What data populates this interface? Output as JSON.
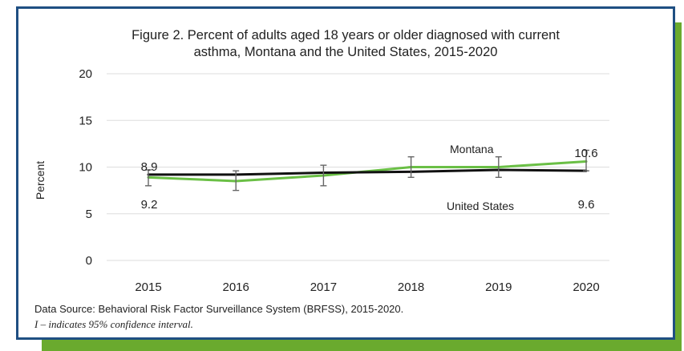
{
  "chart_data": {
    "type": "line",
    "title_line1": "Figure 2. Percent of adults aged 18 years or older diagnosed with current",
    "title_line2": "asthma, Montana and the United States, 2015-2020",
    "xlabel": "",
    "ylabel": "Percent",
    "ylim": [
      0,
      20
    ],
    "yticks": [
      "0",
      "5",
      "10",
      "15",
      "20"
    ],
    "categories": [
      "2015",
      "2016",
      "2017",
      "2018",
      "2019",
      "2020"
    ],
    "grid": "horizontal",
    "series": [
      {
        "name": "Montana",
        "color": "#6abf45",
        "values": [
          8.9,
          8.5,
          9.1,
          10.0,
          10.0,
          10.6
        ],
        "ci_low": [
          8.0,
          7.5,
          8.0,
          8.9,
          8.9,
          9.6
        ],
        "ci_high": [
          9.7,
          9.6,
          10.2,
          11.1,
          11.1,
          11.8
        ]
      },
      {
        "name": "United States",
        "color": "#111111",
        "values": [
          9.2,
          9.2,
          9.4,
          9.5,
          9.7,
          9.6
        ]
      }
    ],
    "annotations": [
      {
        "text": "8.9"
      },
      {
        "text": "9.2"
      },
      {
        "text": "10.6"
      },
      {
        "text": "9.6"
      }
    ],
    "source": "Data Source: Behavioral Risk Factor Surveillance System (BRFSS), 2015-2020.",
    "ci_note": "I – indicates 95% confidence interval."
  }
}
